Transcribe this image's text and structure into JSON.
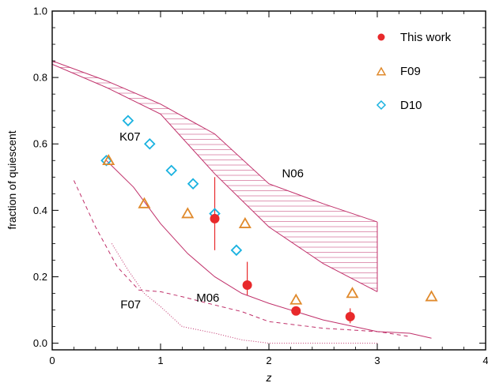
{
  "chart_data": {
    "type": "scatter",
    "xlabel": "z",
    "ylabel": "fraction of quiescent",
    "xlim": [
      0,
      4
    ],
    "ylim": [
      -0.02,
      1.0
    ],
    "xticks": [
      0,
      1,
      2,
      3,
      4
    ],
    "xtick_labels": [
      "0",
      "1",
      "2",
      "3",
      "4"
    ],
    "yticks": [
      0.0,
      0.2,
      0.4,
      0.6,
      0.8,
      1.0
    ],
    "ytick_labels": [
      "0.0",
      "0.2",
      "0.4",
      "0.6",
      "0.8",
      "1.0"
    ],
    "grid": false,
    "legend_position": "top-right",
    "colors": {
      "this_work": "#e8292b",
      "f09": "#e08a2c",
      "d10": "#1ab2e0",
      "model": "#c0306a"
    },
    "series": [
      {
        "name": "This work",
        "marker": "filled-circle",
        "points": [
          {
            "x": 1.5,
            "y": 0.375,
            "ylo": 0.28,
            "yhi": 0.5
          },
          {
            "x": 1.8,
            "y": 0.175,
            "ylo": 0.145,
            "yhi": 0.245
          },
          {
            "x": 2.25,
            "y": 0.097,
            "ylo": 0.085,
            "yhi": 0.11
          },
          {
            "x": 2.75,
            "y": 0.08,
            "ylo": 0.06,
            "yhi": 0.105
          }
        ]
      },
      {
        "name": "F09",
        "marker": "open-triangle",
        "points": [
          {
            "x": 0.52,
            "y": 0.55
          },
          {
            "x": 0.85,
            "y": 0.42
          },
          {
            "x": 1.25,
            "y": 0.39
          },
          {
            "x": 1.78,
            "y": 0.36
          },
          {
            "x": 2.25,
            "y": 0.13
          },
          {
            "x": 2.77,
            "y": 0.15
          },
          {
            "x": 3.5,
            "y": 0.14
          }
        ]
      },
      {
        "name": "D10",
        "marker": "open-diamond",
        "points": [
          {
            "x": 0.5,
            "y": 0.55
          },
          {
            "x": 0.7,
            "y": 0.67
          },
          {
            "x": 0.9,
            "y": 0.6
          },
          {
            "x": 1.1,
            "y": 0.52
          },
          {
            "x": 1.3,
            "y": 0.48
          },
          {
            "x": 1.5,
            "y": 0.39
          },
          {
            "x": 1.7,
            "y": 0.28
          }
        ]
      }
    ],
    "models": {
      "N06_band": {
        "label": "N06",
        "upper": [
          [
            0,
            0.85
          ],
          [
            0.5,
            0.79
          ],
          [
            1.0,
            0.72
          ],
          [
            1.5,
            0.63
          ],
          [
            2.0,
            0.48
          ],
          [
            2.5,
            0.42
          ],
          [
            3.0,
            0.365
          ]
        ],
        "lower": [
          [
            0,
            0.84
          ],
          [
            0.5,
            0.77
          ],
          [
            1.0,
            0.69
          ],
          [
            1.5,
            0.51
          ],
          [
            2.0,
            0.35
          ],
          [
            2.5,
            0.24
          ],
          [
            3.0,
            0.155
          ]
        ]
      },
      "K07": {
        "label": "K07",
        "points": [
          [
            0.5,
            0.55
          ],
          [
            0.75,
            0.47
          ],
          [
            1.0,
            0.36
          ],
          [
            1.25,
            0.27
          ],
          [
            1.5,
            0.2
          ],
          [
            1.75,
            0.15
          ],
          [
            2.0,
            0.12
          ],
          [
            2.5,
            0.07
          ],
          [
            3.0,
            0.035
          ],
          [
            3.3,
            0.03
          ],
          [
            3.5,
            0.015
          ]
        ]
      },
      "M06": {
        "label": "M06",
        "points": [
          [
            0.2,
            0.49
          ],
          [
            0.4,
            0.35
          ],
          [
            0.6,
            0.23
          ],
          [
            0.8,
            0.16
          ],
          [
            1.0,
            0.155
          ],
          [
            1.2,
            0.14
          ],
          [
            1.5,
            0.115
          ],
          [
            1.75,
            0.095
          ],
          [
            2.0,
            0.065
          ],
          [
            2.5,
            0.045
          ],
          [
            3.0,
            0.035
          ],
          [
            3.3,
            0.02
          ]
        ]
      },
      "F07": {
        "label": "F07",
        "points": [
          [
            0.55,
            0.3
          ],
          [
            0.7,
            0.22
          ],
          [
            0.85,
            0.15
          ],
          [
            1.0,
            0.11
          ],
          [
            1.2,
            0.05
          ],
          [
            1.5,
            0.03
          ],
          [
            1.75,
            0.01
          ],
          [
            2.0,
            0.0
          ],
          [
            2.5,
            0.0
          ],
          [
            3.0,
            0.0
          ]
        ]
      }
    },
    "annotations": [
      {
        "text": "K07",
        "x": 0.62,
        "y": 0.61
      },
      {
        "text": "N06",
        "x": 2.12,
        "y": 0.5
      },
      {
        "text": "M06",
        "x": 1.33,
        "y": 0.125
      },
      {
        "text": "F07",
        "x": 0.63,
        "y": 0.105
      }
    ]
  }
}
